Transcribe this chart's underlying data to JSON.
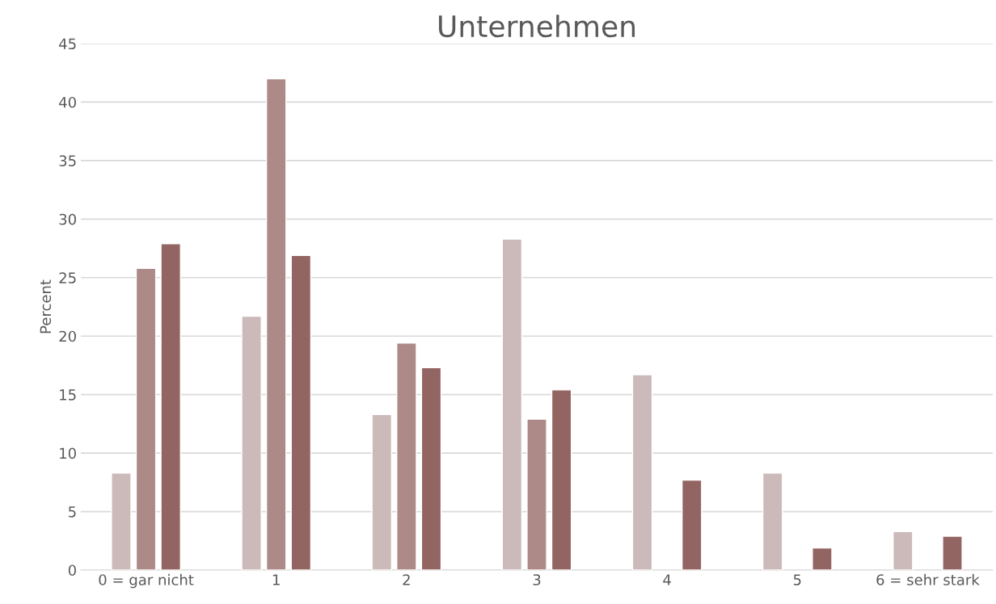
{
  "chart_data": {
    "type": "bar",
    "title": "Unternehmen",
    "ylabel": "Percent",
    "categories": [
      "0 = gar nicht",
      "1",
      "2",
      "3",
      "4",
      "5",
      "6 = sehr stark"
    ],
    "series": [
      {
        "color": "#cbbab9",
        "values": [
          8.3,
          21.7,
          13.3,
          28.3,
          16.7,
          8.3,
          3.3
        ]
      },
      {
        "color": "#ad8a87",
        "values": [
          25.8,
          42,
          19.4,
          12.9,
          null,
          null,
          null
        ]
      },
      {
        "color": "#926462",
        "values": [
          27.9,
          26.9,
          17.3,
          15.4,
          7.7,
          1.9,
          2.9
        ]
      }
    ],
    "ylim": [
      0,
      45
    ],
    "yticks": [
      0,
      5,
      10,
      15,
      20,
      25,
      30,
      35,
      40,
      45
    ],
    "grid": "y"
  }
}
